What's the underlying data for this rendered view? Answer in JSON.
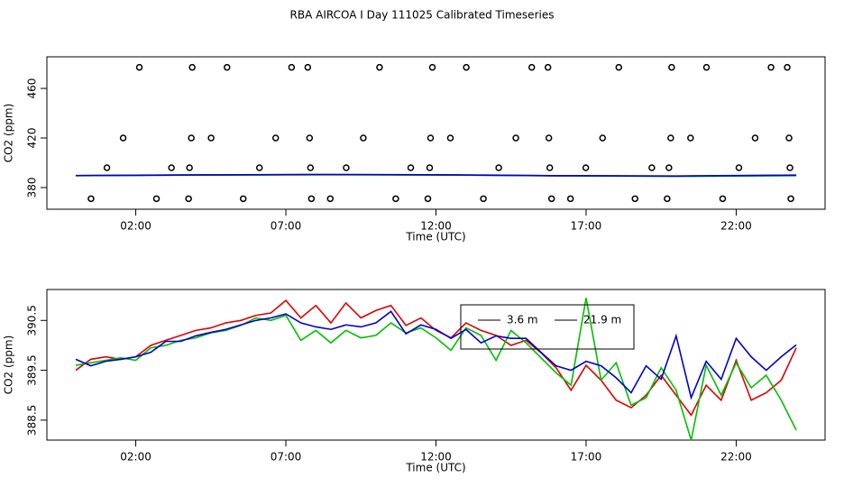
{
  "chart_data": [
    {
      "type": "scatter",
      "title": "RBA AIRCOA I  Day 111025  Calibrated Timeseries",
      "xlabel": "Time (UTC)",
      "ylabel": "CO2 (ppm)",
      "xlim": [
        -0.96,
        24.96
      ],
      "ylim": [
        362.5,
        485.5
      ],
      "xticks": [
        {
          "value": 2,
          "label": "02:00"
        },
        {
          "value": 7,
          "label": "07:00"
        },
        {
          "value": 12,
          "label": "12:00"
        },
        {
          "value": 17,
          "label": "17:00"
        },
        {
          "value": 22,
          "label": "22:00"
        }
      ],
      "yticks": [
        380,
        420,
        460
      ],
      "x": [
        0,
        4,
        8,
        12,
        16,
        20,
        24
      ],
      "series": [
        {
          "color": "#e00000",
          "values": [
            389.6,
            390.1,
            390.5,
            390.2,
            389.5,
            389.1,
            389.9
          ]
        },
        {
          "color": "#00c000",
          "values": [
            389.6,
            390.0,
            390.3,
            390.1,
            389.5,
            389.0,
            389.6
          ]
        },
        {
          "color": "#0000d0",
          "values": [
            389.7,
            390.2,
            390.5,
            390.3,
            389.6,
            389.3,
            390.0
          ]
        }
      ],
      "points": {
        "color": "#000000",
        "x": [
          2.12,
          3.88,
          5.04,
          7.19,
          7.73,
          10.12,
          11.88,
          13.01,
          15.19,
          15.73,
          18.09,
          19.85,
          21.01,
          23.16,
          23.7,
          1.58,
          3.85,
          4.51,
          6.66,
          7.79,
          9.58,
          11.82,
          12.48,
          14.66,
          15.76,
          17.55,
          19.82,
          20.48,
          22.63,
          23.76,
          1.04,
          3.19,
          3.79,
          6.12,
          7.82,
          9.01,
          11.16,
          11.79,
          14.09,
          15.79,
          16.99,
          19.19,
          19.76,
          22.09,
          23.79,
          0.51,
          2.69,
          3.76,
          5.58,
          7.85,
          8.48,
          10.66,
          11.73,
          13.58,
          15.85,
          16.48,
          18.63,
          19.7,
          21.55,
          23.82
        ],
        "values": [
          477,
          477,
          477,
          477,
          477,
          477,
          477,
          477,
          477,
          477,
          477,
          477,
          477,
          477,
          477,
          420,
          420,
          420,
          420,
          420,
          420,
          420,
          420,
          420,
          420,
          420,
          420,
          420,
          420,
          420,
          396,
          396,
          396,
          396,
          396,
          396,
          396,
          396,
          396,
          396,
          396,
          396,
          396,
          396,
          396,
          371,
          371,
          371,
          371,
          371,
          371,
          371,
          371,
          371,
          371,
          371,
          371,
          371,
          371,
          371
        ]
      }
    },
    {
      "type": "line",
      "xlabel": "Time (UTC)",
      "ylabel": "CO2 (ppm)",
      "xlim": [
        -0.96,
        24.96
      ],
      "ylim": [
        388.1,
        391.12
      ],
      "xticks": [
        {
          "value": 2,
          "label": "02:00"
        },
        {
          "value": 7,
          "label": "07:00"
        },
        {
          "value": 12,
          "label": "12:00"
        },
        {
          "value": 17,
          "label": "17:00"
        },
        {
          "value": 22,
          "label": "22:00"
        }
      ],
      "yticks": [
        388.5,
        389.5,
        390.5
      ],
      "x": [
        0,
        0.5,
        1,
        1.5,
        2,
        2.5,
        3,
        3.5,
        4,
        4.5,
        5,
        5.5,
        6,
        6.5,
        7,
        7.5,
        8,
        8.5,
        9,
        9.5,
        10,
        10.5,
        11,
        11.5,
        12,
        12.5,
        13,
        13.5,
        14,
        14.5,
        15,
        15.5,
        16,
        16.5,
        17,
        17.5,
        18,
        18.5,
        19,
        19.5,
        20,
        20.5,
        21,
        21.5,
        22,
        22.5,
        23,
        23.5,
        24
      ],
      "series": [
        {
          "color": "#e00000",
          "values": [
            389.5,
            389.72,
            389.77,
            389.72,
            389.77,
            390.0,
            390.1,
            390.2,
            390.3,
            390.35,
            390.45,
            390.5,
            390.6,
            390.65,
            390.9,
            390.55,
            390.8,
            390.45,
            390.85,
            390.55,
            390.7,
            390.8,
            390.4,
            390.55,
            390.3,
            390.15,
            390.45,
            390.3,
            390.2,
            390.0,
            390.1,
            389.85,
            389.55,
            389.1,
            389.6,
            389.3,
            388.9,
            388.75,
            389.0,
            389.4,
            389.0,
            388.6,
            389.2,
            388.9,
            389.7,
            388.9,
            389.05,
            389.3,
            389.95
          ]
        },
        {
          "name": "3.6 m",
          "color": "#00c000",
          "values": [
            389.6,
            389.65,
            389.7,
            389.75,
            389.7,
            389.95,
            390.0,
            390.1,
            390.15,
            390.25,
            390.3,
            390.4,
            390.55,
            390.5,
            390.6,
            390.1,
            390.3,
            390.05,
            390.3,
            390.15,
            390.2,
            390.45,
            390.25,
            390.35,
            390.15,
            389.9,
            390.35,
            390.2,
            389.7,
            390.3,
            390.05,
            389.75,
            389.45,
            389.2,
            390.95,
            389.3,
            389.65,
            388.8,
            388.95,
            389.55,
            389.1,
            388.1,
            389.6,
            389.0,
            389.65,
            389.15,
            389.4,
            388.9,
            388.3
          ]
        },
        {
          "name": "21.9 m",
          "color": "#0000d0",
          "values": [
            389.72,
            389.59,
            389.68,
            389.72,
            389.77,
            389.86,
            390.08,
            390.08,
            390.19,
            390.26,
            390.32,
            390.41,
            390.5,
            390.55,
            390.63,
            390.45,
            390.37,
            390.32,
            390.41,
            390.37,
            390.45,
            390.68,
            390.23,
            390.41,
            390.32,
            390.14,
            390.32,
            390.05,
            390.19,
            390.14,
            390.14,
            389.86,
            389.59,
            389.5,
            389.68,
            389.59,
            389.35,
            389.05,
            389.59,
            389.32,
            390.19,
            388.95,
            389.68,
            389.32,
            390.14,
            389.77,
            389.5,
            389.77,
            390.01
          ]
        }
      ]
    }
  ]
}
